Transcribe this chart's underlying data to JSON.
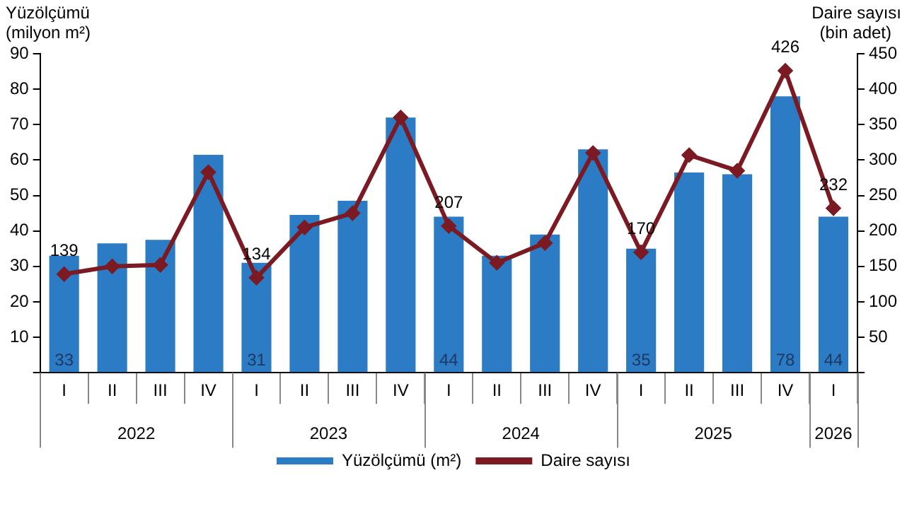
{
  "chart_data": {
    "type": "bar",
    "ylabel": "Yüzölçümü (milyon m²)",
    "y2label": "Daire sayısı (bin adet)",
    "categories": [
      "I",
      "II",
      "III",
      "IV",
      "I",
      "II",
      "III",
      "IV",
      "I",
      "II",
      "III",
      "IV",
      "I",
      "II",
      "III",
      "IV",
      "I"
    ],
    "annotations": [
      "2022",
      "2023",
      "2024",
      "2025",
      "2026"
    ],
    "series": [
      {
        "name": "Yüzölçümü (m²)",
        "color": "#2b7cc4",
        "values": [
          33,
          36.5,
          37.5,
          61.5,
          31,
          44.5,
          48.5,
          72,
          44,
          33,
          39,
          63,
          35,
          56.5,
          56,
          78,
          44
        ],
        "value_labels": [
          "33",
          null,
          null,
          null,
          "31",
          null,
          null,
          null,
          "44",
          null,
          null,
          null,
          "35",
          null,
          null,
          "78",
          "44"
        ]
      },
      {
        "name": "Daire sayısı",
        "type": "line",
        "axis": "y2",
        "color": "#7b1a22",
        "marker": "diamond",
        "values": [
          139,
          150,
          152,
          283,
          134,
          205,
          225,
          360,
          207,
          155,
          183,
          310,
          170,
          307,
          285,
          426,
          232
        ],
        "value_labels": [
          "139",
          null,
          null,
          null,
          "134",
          null,
          null,
          null,
          "207",
          null,
          null,
          null,
          "170",
          null,
          null,
          "426",
          "232"
        ]
      }
    ],
    "ylim": [
      0,
      90
    ],
    "yticks": [
      {
        "value": 0,
        "label": null
      },
      10,
      20,
      30,
      40,
      50,
      60,
      70,
      80,
      90
    ],
    "y2lim": [
      0,
      450
    ],
    "y2ticks": [
      {
        "value": 0,
        "label": null
      },
      50,
      100,
      150,
      200,
      250,
      300,
      350,
      400,
      450
    ],
    "grid": false,
    "legend": "bottom"
  }
}
